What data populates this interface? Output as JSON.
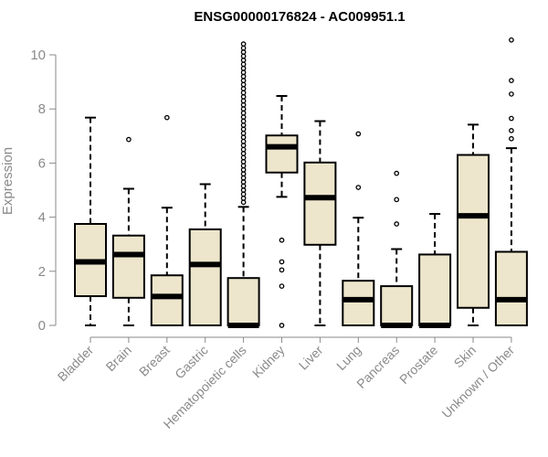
{
  "chart_data": {
    "type": "boxplot",
    "title": "ENSG00000176824 - AC009951.1",
    "xlabel": "",
    "ylabel": "Expression",
    "ylim": [
      0,
      10.5
    ],
    "yticks": [
      0,
      2,
      4,
      6,
      8,
      10
    ],
    "box_fill": "#ede6cc",
    "box_stroke": "#000000",
    "axis_color": "#8a8a8a",
    "categories": [
      "Bladder",
      "Brain",
      "Breast",
      "Gastric",
      "Hematopoietic cells",
      "Kidney",
      "Liver",
      "Lung",
      "Pancreas",
      "Prostate",
      "Skin",
      "Unknown / Other"
    ],
    "boxes": [
      {
        "name": "Bladder",
        "whisker_low": 0,
        "q1": 1.08,
        "median": 2.35,
        "q3": 3.75,
        "whisker_high": 7.68,
        "outliers": []
      },
      {
        "name": "Brain",
        "whisker_low": 0,
        "q1": 1.02,
        "median": 2.62,
        "q3": 3.32,
        "whisker_high": 5.05,
        "outliers": [
          6.87
        ]
      },
      {
        "name": "Breast",
        "whisker_low": 0,
        "q1": 0,
        "median": 1.07,
        "q3": 1.85,
        "whisker_high": 4.35,
        "outliers": [
          7.68
        ]
      },
      {
        "name": "Gastric",
        "whisker_low": 0,
        "q1": 0,
        "median": 2.25,
        "q3": 3.55,
        "whisker_high": 5.22,
        "outliers": []
      },
      {
        "name": "Hematopoietic cells",
        "whisker_low": 0,
        "q1": 0,
        "median": 0,
        "q3": 1.75,
        "whisker_high": 4.38,
        "outliers": [
          4.55,
          4.7,
          4.85,
          5.0,
          5.15,
          5.3,
          5.45,
          5.6,
          5.75,
          5.9,
          6.05,
          6.2,
          6.35,
          6.5,
          6.65,
          6.8,
          6.95,
          7.1,
          7.25,
          7.4,
          7.55,
          7.7,
          7.85,
          8.0,
          8.15,
          8.3,
          8.45,
          8.6,
          8.75,
          8.9,
          9.05,
          9.2,
          9.35,
          9.5,
          9.65,
          9.8,
          9.95,
          10.1,
          10.25,
          10.4
        ]
      },
      {
        "name": "Kidney",
        "whisker_low": 4.75,
        "q1": 5.65,
        "median": 6.6,
        "q3": 7.02,
        "whisker_high": 8.48,
        "outliers": [
          3.15,
          2.35,
          2.05,
          1.45,
          0
        ]
      },
      {
        "name": "Liver",
        "whisker_low": 0,
        "q1": 2.98,
        "median": 4.72,
        "q3": 6.02,
        "whisker_high": 7.55,
        "outliers": []
      },
      {
        "name": "Lung",
        "whisker_low": 0,
        "q1": 0,
        "median": 0.95,
        "q3": 1.65,
        "whisker_high": 3.98,
        "outliers": [
          5.1,
          7.08
        ]
      },
      {
        "name": "Pancreas",
        "whisker_low": 0,
        "q1": 0,
        "median": 0,
        "q3": 1.45,
        "whisker_high": 2.82,
        "outliers": [
          3.75,
          4.65,
          5.62
        ]
      },
      {
        "name": "Prostate",
        "whisker_low": 0,
        "q1": 0,
        "median": 0,
        "q3": 2.62,
        "whisker_high": 4.12,
        "outliers": []
      },
      {
        "name": "Skin",
        "whisker_low": 0,
        "q1": 0.65,
        "median": 4.05,
        "q3": 6.3,
        "whisker_high": 7.42,
        "outliers": []
      },
      {
        "name": "Unknown / Other",
        "whisker_low": 0,
        "q1": 0,
        "median": 0.95,
        "q3": 2.72,
        "whisker_high": 6.55,
        "outliers": [
          6.9,
          7.2,
          7.65,
          8.55,
          9.05,
          10.55
        ]
      }
    ]
  }
}
